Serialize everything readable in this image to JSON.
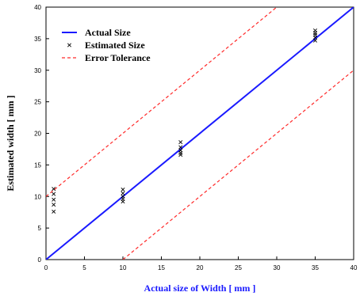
{
  "chart_data": {
    "type": "scatter",
    "xlabel": "Actual size of  Width [ mm ]",
    "ylabel": "Estimated  width [ mm ]",
    "xlim": [
      0,
      40
    ],
    "ylim": [
      0,
      40
    ],
    "xticks": [
      0,
      5,
      10,
      15,
      20,
      25,
      30,
      35,
      40
    ],
    "yticks": [
      0,
      5,
      10,
      15,
      20,
      25,
      30,
      35,
      40
    ],
    "grid": false,
    "legend_position": "top-left",
    "series": [
      {
        "name": "Actual Size",
        "kind": "line",
        "color": "#1a1aff",
        "style": "solid",
        "x": [
          0,
          40
        ],
        "y": [
          0,
          40
        ]
      },
      {
        "name": "Estimated Size",
        "kind": "points",
        "color": "#000000",
        "marker": "x",
        "x": [
          1,
          1,
          1,
          1,
          1,
          10,
          10,
          10,
          10,
          10,
          17.5,
          17.5,
          17.5,
          17.5,
          17.5,
          35,
          35,
          35,
          35,
          35
        ],
        "y": [
          11.2,
          10.4,
          9.5,
          8.7,
          7.6,
          11.1,
          10.5,
          10.0,
          9.6,
          9.2,
          18.6,
          17.8,
          17.3,
          16.9,
          16.6,
          36.3,
          35.9,
          35.6,
          35.2,
          34.7
        ]
      },
      {
        "name": "Error Tolerance",
        "kind": "line",
        "color": "#ff2a2a",
        "style": "dashed",
        "segments": [
          {
            "x": [
              0,
              30
            ],
            "y": [
              10,
              40
            ]
          },
          {
            "x": [
              10,
              40
            ],
            "y": [
              0,
              30
            ]
          }
        ]
      }
    ]
  }
}
